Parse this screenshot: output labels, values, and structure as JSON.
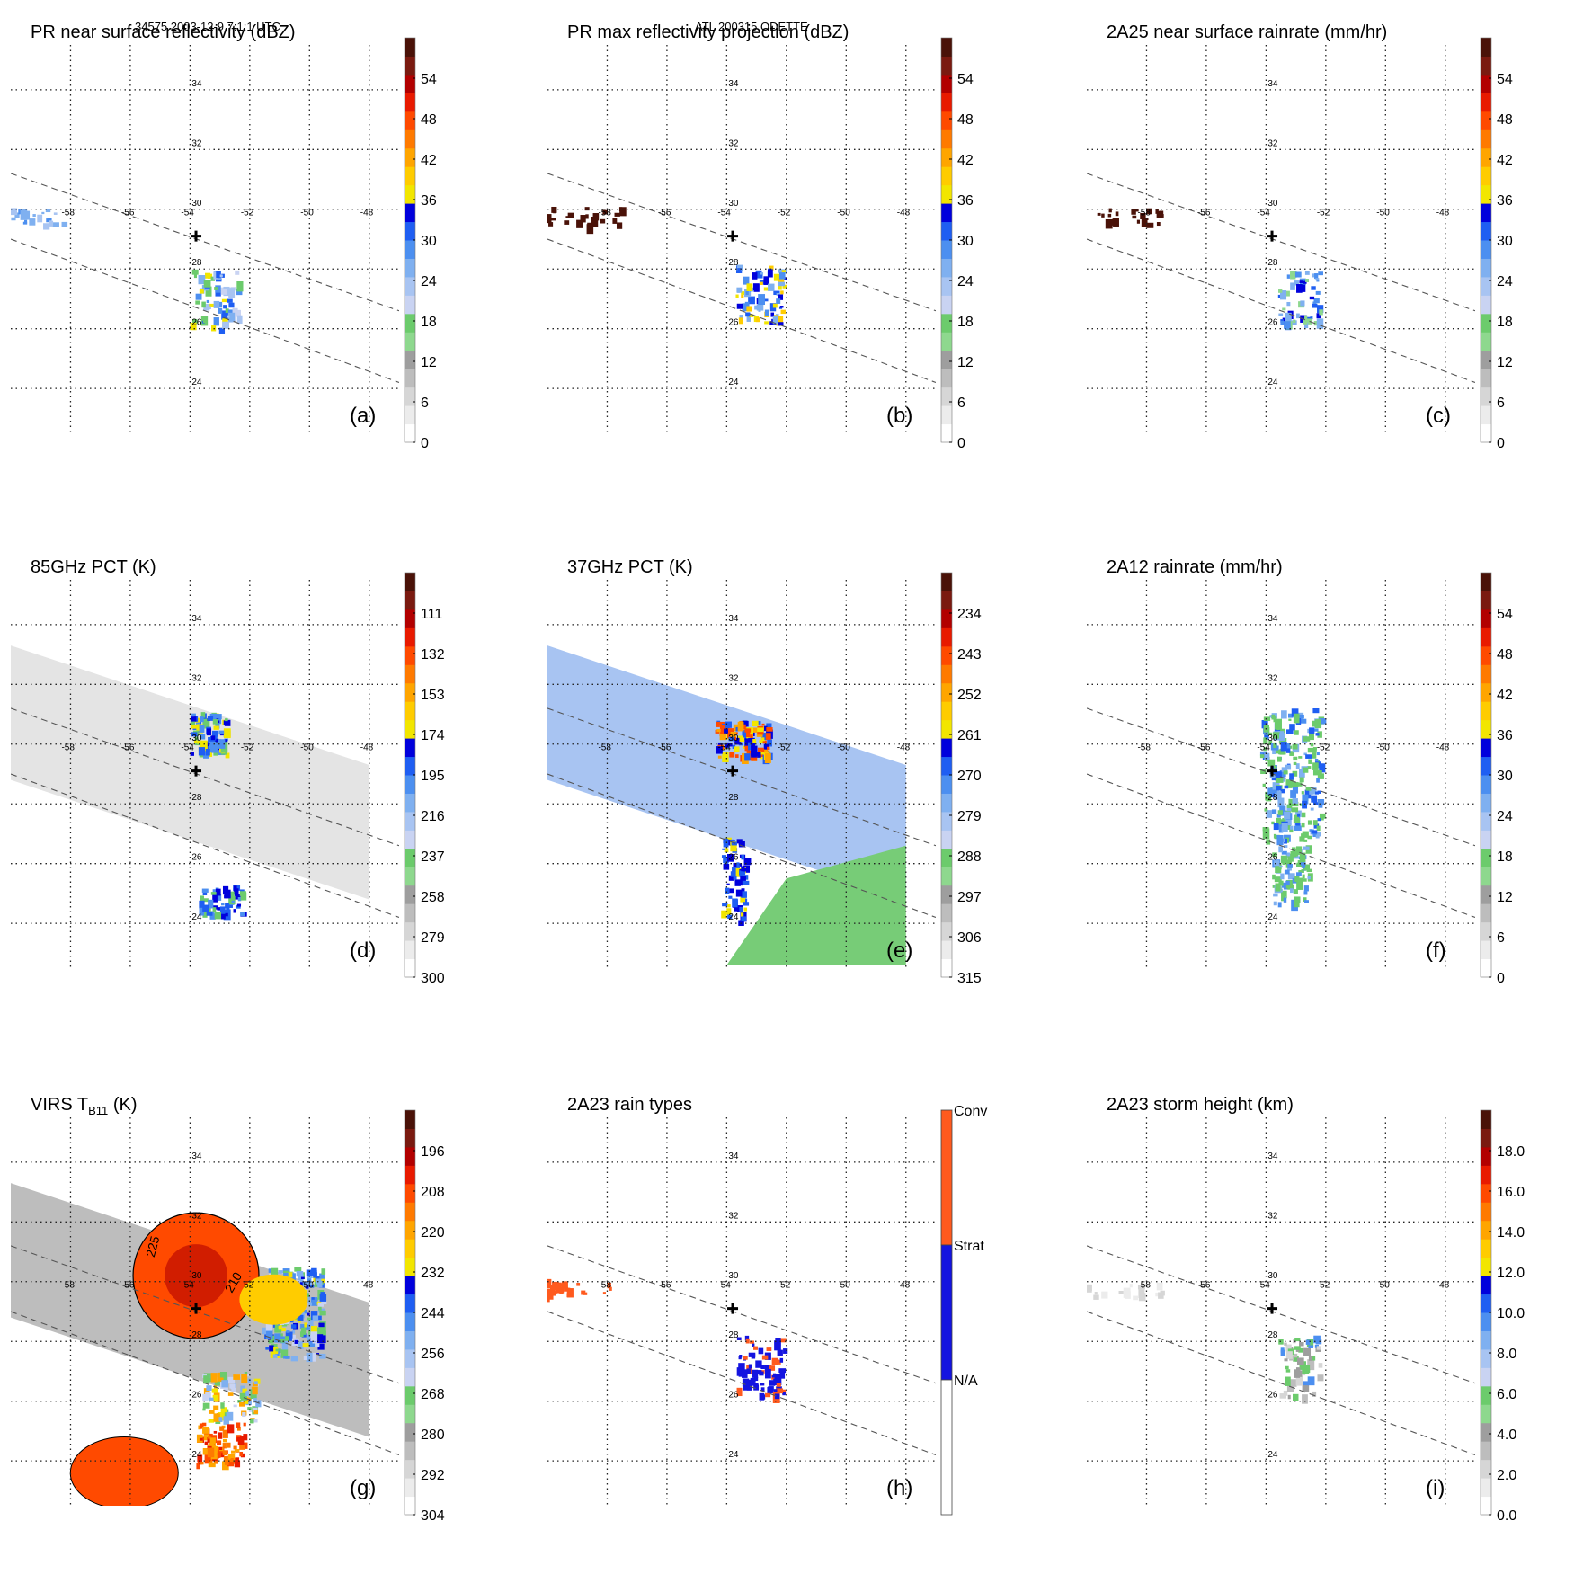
{
  "header": {
    "left": "34575 2003-12-9 7:1:1 UTC",
    "center": "ATL 200315 ODETTE"
  },
  "grid": {
    "lon_ticks": [
      "-58",
      "-56",
      "-54",
      "-52",
      "-50",
      "-48"
    ],
    "lat_ticks": [
      "34",
      "32",
      "30",
      "28",
      "26",
      "24"
    ]
  },
  "colors": {
    "ramp": [
      "#ffffff",
      "#ececec",
      "#d6d6d6",
      "#bdbdbd",
      "#9e9e9e",
      "#8ed88e",
      "#6ccb6c",
      "#c9d3f2",
      "#a8c4f2",
      "#7fb0f0",
      "#4c8ff0",
      "#1f5ef2",
      "#0000dc",
      "#f2e600",
      "#ffcc00",
      "#ffa500",
      "#ff7a00",
      "#ff4a00",
      "#e81a00",
      "#b20000",
      "#7a1a10",
      "#4a1208"
    ],
    "grid_line": "#222222",
    "track_line": "#555555",
    "green_fill": "#77cc77",
    "raintype_conv": "#ff5a1e",
    "raintype_strat": "#1414e0"
  },
  "chart_data": [
    {
      "id": "a",
      "type": "heatmap",
      "title": "PR near surface reflectivity (dBZ)",
      "panel_label": "(a)",
      "colorbar_ticks": [
        "54",
        "48",
        "42",
        "36",
        "30",
        "24",
        "18",
        "12",
        "6",
        "0"
      ],
      "domain": {
        "lon": [
          -60,
          -47
        ],
        "lat": [
          22.5,
          35.5
        ]
      }
    },
    {
      "id": "b",
      "type": "heatmap",
      "title": "PR max reflectivity projection (dBZ)",
      "panel_label": "(b)",
      "colorbar_ticks": [
        "54",
        "48",
        "42",
        "36",
        "30",
        "24",
        "18",
        "12",
        "6",
        "0"
      ],
      "domain": {
        "lon": [
          -60,
          -47
        ],
        "lat": [
          22.5,
          35.5
        ]
      }
    },
    {
      "id": "c",
      "type": "heatmap",
      "title": "2A25 near surface rainrate (mm/hr)",
      "panel_label": "(c)",
      "colorbar_ticks": [
        "54",
        "48",
        "42",
        "36",
        "30",
        "24",
        "18",
        "12",
        "6",
        "0"
      ],
      "domain": {
        "lon": [
          -60,
          -47
        ],
        "lat": [
          22.5,
          35.5
        ]
      }
    },
    {
      "id": "d",
      "type": "heatmap",
      "title": "85GHz PCT (K)",
      "panel_label": "(d)",
      "colorbar_ticks": [
        "111",
        "132",
        "153",
        "174",
        "195",
        "216",
        "237",
        "258",
        "279",
        "300"
      ],
      "domain": {
        "lon": [
          -60,
          -47
        ],
        "lat": [
          22.5,
          35.5
        ]
      }
    },
    {
      "id": "e",
      "type": "heatmap",
      "title": "37GHz PCT (K)",
      "panel_label": "(e)",
      "colorbar_ticks": [
        "234",
        "243",
        "252",
        "261",
        "270",
        "279",
        "288",
        "297",
        "306",
        "315"
      ],
      "domain": {
        "lon": [
          -60,
          -47
        ],
        "lat": [
          22.5,
          35.5
        ]
      }
    },
    {
      "id": "f",
      "type": "heatmap",
      "title": "2A12 rainrate (mm/hr)",
      "panel_label": "(f)",
      "colorbar_ticks": [
        "54",
        "48",
        "42",
        "36",
        "30",
        "24",
        "18",
        "12",
        "6",
        "0"
      ],
      "domain": {
        "lon": [
          -60,
          -47
        ],
        "lat": [
          22.5,
          35.5
        ]
      }
    },
    {
      "id": "g",
      "type": "heatmap",
      "title": "VIRS T",
      "title_sub": "B11",
      "title_unit": "(K)",
      "panel_label": "(g)",
      "colorbar_ticks": [
        "196",
        "208",
        "220",
        "232",
        "244",
        "256",
        "268",
        "280",
        "292",
        "304"
      ],
      "contour_labels": [
        "225",
        "210"
      ],
      "domain": {
        "lon": [
          -60,
          -47
        ],
        "lat": [
          22.5,
          35.5
        ]
      }
    },
    {
      "id": "h",
      "type": "heatmap",
      "title": "2A23 rain types",
      "panel_label": "(h)",
      "categories": [
        "Conv",
        "Strat",
        "N/A"
      ],
      "domain": {
        "lon": [
          -60,
          -47
        ],
        "lat": [
          22.5,
          35.5
        ]
      }
    },
    {
      "id": "i",
      "type": "heatmap",
      "title": "2A23 storm height (km)",
      "panel_label": "(i)",
      "colorbar_ticks": [
        "18.0",
        "16.0",
        "14.0",
        "12.0",
        "10.0",
        "8.0",
        "6.0",
        "4.0",
        "2.0",
        "0.0"
      ],
      "domain": {
        "lon": [
          -60,
          -47
        ],
        "lat": [
          22.5,
          35.5
        ]
      }
    }
  ]
}
